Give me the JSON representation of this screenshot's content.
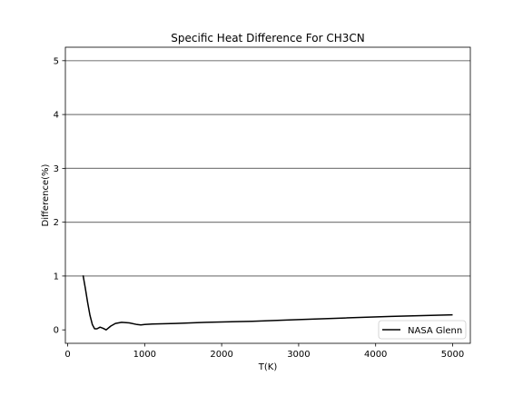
{
  "chart_data": {
    "type": "line",
    "title": "Specific Heat Difference For CH3CN",
    "xlabel": "T(K)",
    "ylabel": "Difference(%)",
    "xlim": [
      -30,
      5230
    ],
    "ylim": [
      -0.25,
      5.25
    ],
    "xticks": [
      0,
      1000,
      2000,
      3000,
      4000,
      5000
    ],
    "yticks": [
      0,
      1,
      2,
      3,
      4,
      5
    ],
    "grid": "horizontal lines at y = 1, 2, 3, 4, 5",
    "legend": {
      "position": "lower-right",
      "entries": [
        "NASA Glenn"
      ]
    },
    "series": [
      {
        "name": "NASA Glenn",
        "color": "#000000",
        "x": [
          200,
          230,
          260,
          290,
          320,
          350,
          380,
          420,
          460,
          500,
          560,
          620,
          700,
          800,
          900,
          950,
          1000,
          1100,
          1400,
          1800,
          2400,
          3000,
          3600,
          4200,
          5000
        ],
        "y": [
          1.01,
          0.77,
          0.5,
          0.27,
          0.1,
          0.02,
          0.02,
          0.05,
          0.03,
          0.0,
          0.07,
          0.12,
          0.14,
          0.13,
          0.1,
          0.09,
          0.1,
          0.11,
          0.12,
          0.14,
          0.16,
          0.19,
          0.22,
          0.25,
          0.28
        ]
      }
    ]
  }
}
